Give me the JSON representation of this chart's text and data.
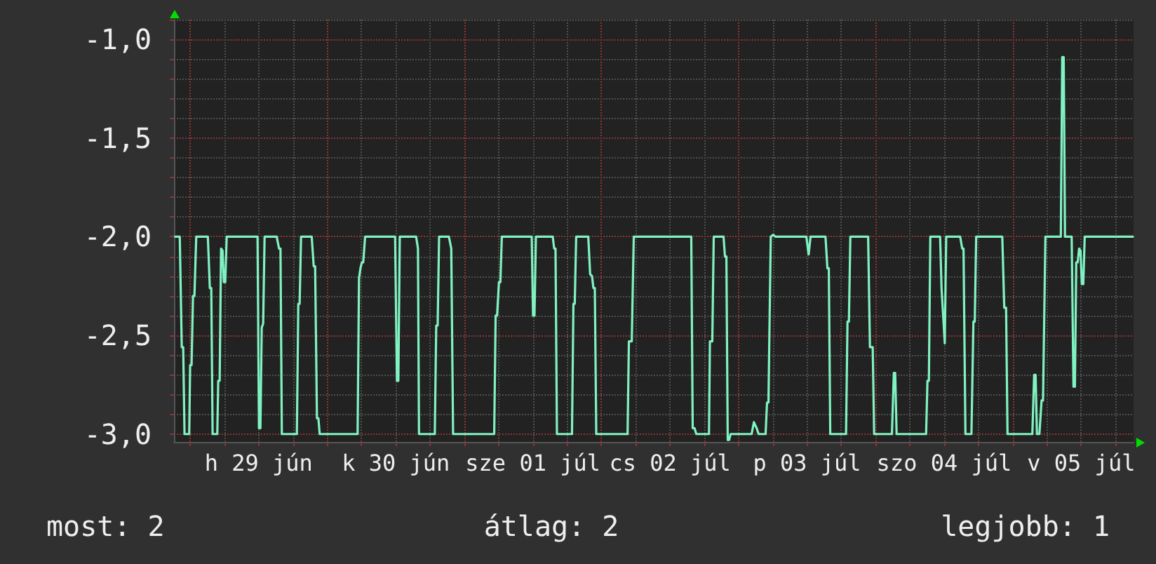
{
  "chart_data": {
    "type": "line",
    "color": "#80f2c2",
    "x": [
      "--06-28T21:23",
      "--06-28T22:11",
      "--06-28T22:32",
      "--06-28T22:47",
      "--06-28T23:01",
      "--06-28T23:50",
      "--06-29T00:00",
      "--06-29T00:15",
      "--06-29T00:30",
      "--06-29T00:45",
      "--06-29T01:04",
      "--06-29T03:06",
      "--06-29T03:27",
      "--06-29T03:42",
      "--06-29T03:56",
      "--06-29T04:45",
      "--06-29T04:55",
      "--06-29T05:10",
      "--06-29T05:25",
      "--06-29T05:40",
      "--06-29T05:54",
      "--06-29T06:09",
      "--06-29T06:24",
      "--06-29T11:48",
      "--06-29T12:03",
      "--06-29T12:18",
      "--06-29T12:32",
      "--06-29T12:47",
      "--06-29T13:02",
      "--06-29T15:09",
      "--06-29T15:34",
      "--06-29T15:49",
      "--06-29T16:03",
      "--06-29T18:41",
      "--06-29T18:56",
      "--06-29T19:10",
      "--06-29T19:25",
      "--06-29T21:17",
      "--06-29T21:38",
      "--06-29T21:53",
      "--06-29T22:12",
      "--06-29T22:27",
      "--06-29T22:41",
      "--06-30T05:19",
      "--06-30T05:34",
      "--06-30T05:49",
      "--06-30T06:04",
      "--06-30T06:18",
      "--06-30T06:38",
      "--06-30T11:53",
      "--06-30T12:12",
      "--06-30T12:27",
      "--06-30T12:42",
      "--06-30T15:34",
      "--06-30T15:53",
      "--06-30T16:04",
      "--06-30T18:50",
      "--06-30T19:05",
      "--06-30T19:20",
      "--06-30T19:35",
      "--06-30T21:18",
      "--06-30T21:43",
      "--06-30T22:02",
      "--07-01T05:14",
      "--07-01T05:29",
      "--07-01T05:44",
      "--07-01T06:04",
      "--07-01T06:19",
      "--07-01T06:34",
      "--07-01T11:48",
      "--07-01T12:02",
      "--07-01T12:17",
      "--07-01T12:32",
      "--07-01T15:29",
      "--07-01T15:44",
      "--07-01T15:58",
      "--07-01T16:13",
      "--07-01T18:51",
      "--07-01T19:06",
      "--07-01T19:20",
      "--07-01T19:35",
      "--07-01T21:42",
      "--07-01T22:02",
      "--07-01T22:22",
      "--07-01T22:36",
      "--07-01T22:51",
      "--07-01T23:06",
      "--07-02T04:35",
      "--07-02T04:49",
      "--07-02T05:19",
      "--07-02T05:40",
      "--07-02T15:44",
      "--07-02T15:59",
      "--07-02T16:18",
      "--07-02T16:37",
      "--07-02T18:50",
      "--07-02T19:00",
      "--07-02T19:25",
      "--07-02T19:40",
      "--07-02T21:23",
      "--07-02T21:38",
      "--07-02T21:53",
      "--07-02T22:07",
      "--07-02T22:22",
      "--07-02T22:37",
      "--07-03T02:18",
      "--07-03T02:42",
      "--07-03T03:11",
      "--07-03T03:31",
      "--07-03T04:45",
      "--07-03T05:00",
      "--07-03T05:15",
      "--07-03T05:39",
      "--07-03T06:04",
      "--07-03T06:29",
      "--07-03T11:53",
      "--07-03T12:17",
      "--07-03T12:37",
      "--07-03T15:14",
      "--07-03T15:34",
      "--07-03T15:49",
      "--07-03T16:04",
      "--07-03T18:50",
      "--07-03T19:05",
      "--07-03T19:20",
      "--07-03T19:35",
      "--07-03T22:42",
      "--07-03T23:01",
      "--07-03T23:30",
      "--07-03T23:45",
      "--07-04T02:52",
      "--07-04T03:12",
      "--07-04T03:26",
      "--07-04T03:41",
      "--07-04T08:51",
      "--07-04T09:05",
      "--07-04T09:20",
      "--07-04T09:35",
      "--07-04T11:18",
      "--07-04T11:33",
      "--07-04T12:07",
      "--07-04T12:22",
      "--07-04T14:49",
      "--07-04T15:10",
      "--07-04T15:24",
      "--07-04T15:44",
      "--07-04T16:47",
      "--07-04T17:08",
      "--07-04T17:22",
      "--07-04T17:37",
      "--07-04T22:11",
      "--07-04T22:32",
      "--07-04T22:51",
      "--07-04T23:06",
      "--07-05T03:27",
      "--07-05T03:46",
      "--07-05T04:01",
      "--07-05T04:15",
      "--07-05T04:41",
      "--07-05T05:04",
      "--07-05T05:19",
      "--07-05T05:44",
      "--07-05T08:26",
      "--07-05T08:41",
      "--07-05T08:56",
      "--07-05T09:10",
      "--07-05T10:20",
      "--07-05T10:39",
      "--07-05T10:54",
      "--07-05T11:08",
      "--07-05T11:23",
      "--07-05T11:38",
      "--07-05T11:53",
      "--07-05T12:07",
      "--07-05T12:22",
      "--07-05T12:37",
      "--07-05T21:03"
    ],
    "values": [
      -2.0,
      -2.0,
      -2.56,
      -2.56,
      -3.0,
      -3.0,
      -2.65,
      -2.65,
      -2.3,
      -2.3,
      -2.0,
      -2.0,
      -2.26,
      -2.26,
      -3.0,
      -3.0,
      -2.73,
      -2.73,
      -2.06,
      -2.07,
      -2.23,
      -2.23,
      -2.0,
      -2.0,
      -2.97,
      -2.97,
      -2.46,
      -2.44,
      -2.0,
      -2.0,
      -2.06,
      -2.06,
      -3.0,
      -3.0,
      -2.34,
      -2.34,
      -2.0,
      -2.0,
      -2.15,
      -2.15,
      -2.92,
      -2.92,
      -3.0,
      -3.0,
      -2.21,
      -2.16,
      -2.13,
      -2.13,
      -2.0,
      -2.0,
      -2.73,
      -2.73,
      -2.0,
      -2.0,
      -2.06,
      -3.0,
      -3.0,
      -2.45,
      -2.45,
      -2.0,
      -2.0,
      -2.06,
      -3.0,
      -3.0,
      -2.4,
      -2.4,
      -2.23,
      -2.23,
      -2.0,
      -2.0,
      -2.4,
      -2.4,
      -2.0,
      -2.0,
      -2.06,
      -2.06,
      -3.0,
      -3.0,
      -2.34,
      -2.34,
      -2.0,
      -2.0,
      -2.19,
      -2.2,
      -2.26,
      -2.26,
      -3.0,
      -3.0,
      -2.53,
      -2.53,
      -2.0,
      -2.0,
      -2.97,
      -2.97,
      -3.0,
      -3.0,
      -2.53,
      -2.53,
      -2.0,
      -2.0,
      -2.1,
      -2.1,
      -3.03,
      -3.03,
      -3.0,
      -3.0,
      -2.94,
      -2.97,
      -3.0,
      -3.0,
      -2.84,
      -2.84,
      -2.0,
      -1.99,
      -2.0,
      -2.0,
      -2.09,
      -2.0,
      -2.0,
      -2.16,
      -2.16,
      -3.0,
      -3.0,
      -2.43,
      -2.43,
      -2.0,
      -2.0,
      -2.56,
      -2.56,
      -3.0,
      -3.0,
      -2.69,
      -2.69,
      -3.0,
      -3.0,
      -2.73,
      -2.73,
      -2.0,
      -2.0,
      -2.26,
      -2.54,
      -2.0,
      -2.0,
      -2.06,
      -2.06,
      -3.0,
      -3.0,
      -2.43,
      -2.43,
      -2.0,
      -2.0,
      -2.36,
      -2.36,
      -3.0,
      -3.0,
      -2.7,
      -2.7,
      -3.0,
      -3.0,
      -2.83,
      -2.83,
      -2.0,
      -2.0,
      -1.09,
      -1.09,
      -2.0,
      -2.0,
      -2.76,
      -2.76,
      -2.13,
      -2.13,
      -2.06,
      -2.07,
      -2.24,
      -2.24,
      -2.0,
      -2.0
    ],
    "xlim": [
      "--06-28T21:10",
      "--07-05T21:10"
    ],
    "xticks": [
      {
        "value": "--06-29T00:00",
        "label": null
      },
      {
        "value": "--06-29T06:00",
        "label": null
      },
      {
        "value": "--06-29T12:00",
        "label": "h 29 jún"
      },
      {
        "value": "--06-29T18:00",
        "label": null
      },
      {
        "value": "--06-30T00:00",
        "label": null
      },
      {
        "value": "--06-30T06:00",
        "label": null
      },
      {
        "value": "--06-30T12:00",
        "label": "k 30 jún"
      },
      {
        "value": "--06-30T18:00",
        "label": null
      },
      {
        "value": "--07-01T00:00",
        "label": null
      },
      {
        "value": "--07-01T06:00",
        "label": null
      },
      {
        "value": "--07-01T12:00",
        "label": "sze 01 júl"
      },
      {
        "value": "--07-01T18:00",
        "label": null
      },
      {
        "value": "--07-02T00:00",
        "label": null
      },
      {
        "value": "--07-02T06:00",
        "label": null
      },
      {
        "value": "--07-02T12:00",
        "label": "cs 02 júl"
      },
      {
        "value": "--07-02T18:00",
        "label": null
      },
      {
        "value": "--07-03T00:00",
        "label": null
      },
      {
        "value": "--07-03T06:00",
        "label": null
      },
      {
        "value": "--07-03T12:00",
        "label": "p 03 júl"
      },
      {
        "value": "--07-03T18:00",
        "label": null
      },
      {
        "value": "--07-04T00:00",
        "label": null
      },
      {
        "value": "--07-04T06:00",
        "label": null
      },
      {
        "value": "--07-04T12:00",
        "label": "szo 04 júl"
      },
      {
        "value": "--07-04T18:00",
        "label": null
      },
      {
        "value": "--07-05T00:00",
        "label": null
      },
      {
        "value": "--07-05T06:00",
        "label": null
      },
      {
        "value": "--07-05T12:00",
        "label": "v 05 júl"
      },
      {
        "value": "--07-05T18:00",
        "label": null
      }
    ],
    "ylim": [
      -3.04,
      -0.9
    ],
    "yticks": [
      {
        "value": -3.0,
        "label": "-3,0"
      },
      {
        "value": -2.9,
        "label": null
      },
      {
        "value": -2.8,
        "label": null
      },
      {
        "value": -2.7,
        "label": null
      },
      {
        "value": -2.6,
        "label": null
      },
      {
        "value": -2.5,
        "label": "-2,5"
      },
      {
        "value": -2.4,
        "label": null
      },
      {
        "value": -2.3,
        "label": null
      },
      {
        "value": -2.2,
        "label": null
      },
      {
        "value": -2.1,
        "label": null
      },
      {
        "value": -2.0,
        "label": "-2,0"
      },
      {
        "value": -1.9,
        "label": null
      },
      {
        "value": -1.8,
        "label": null
      },
      {
        "value": -1.7,
        "label": null
      },
      {
        "value": -1.6,
        "label": null
      },
      {
        "value": -1.5,
        "label": "-1,5"
      },
      {
        "value": -1.4,
        "label": null
      },
      {
        "value": -1.3,
        "label": null
      },
      {
        "value": -1.2,
        "label": null
      },
      {
        "value": -1.1,
        "label": null
      },
      {
        "value": -1.0,
        "label": "-1,0"
      },
      {
        "value": -0.9,
        "label": null
      }
    ],
    "grid": true,
    "annotations": [
      "most: 2",
      "átlag: 2",
      "legjobb: 1"
    ]
  }
}
